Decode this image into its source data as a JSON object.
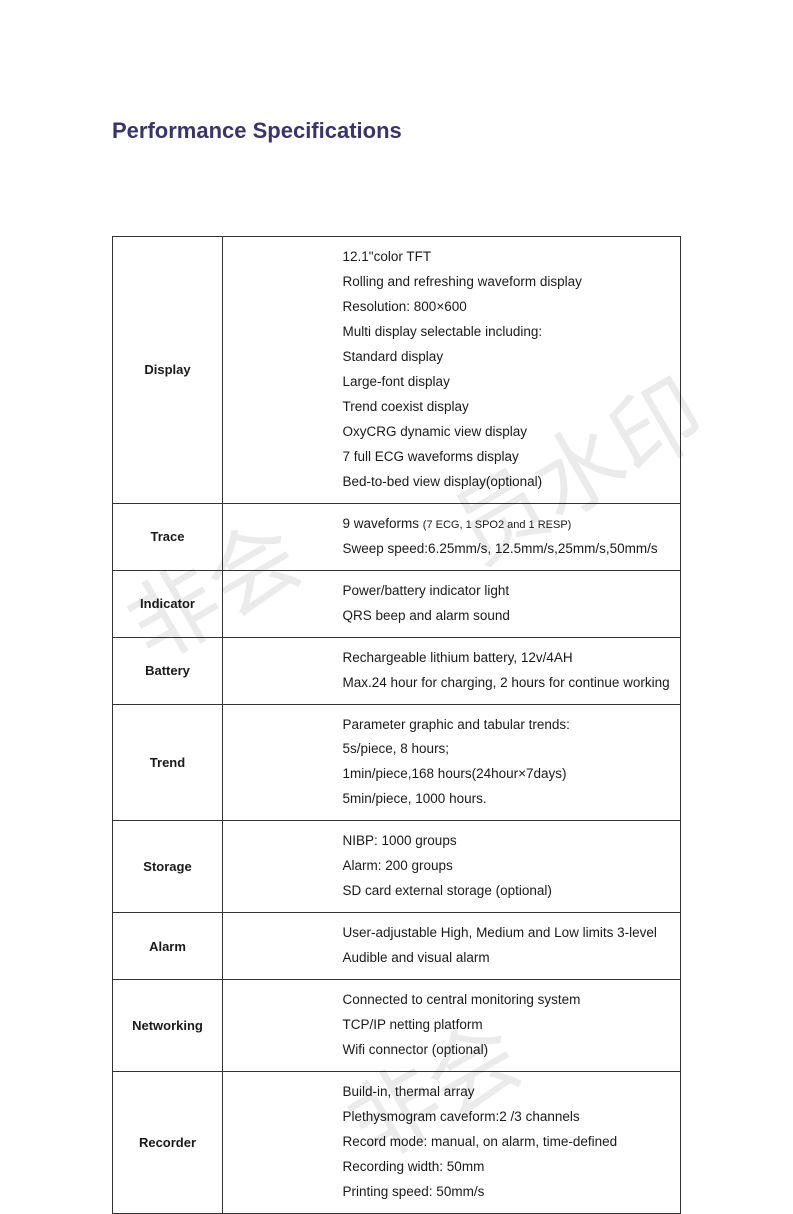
{
  "document": {
    "title": "Performance Specifications",
    "title_color": "#3a3468",
    "title_fontsize": 22,
    "background_color": "#ffffff",
    "text_color": "#1a1a1a",
    "border_color": "#333333",
    "watermark_text_1": "非会",
    "watermark_text_2": "员水印",
    "watermark_text_3": "非会",
    "watermark_color": "rgba(0,0,0,0.08)"
  },
  "table": {
    "label_col_width": 110,
    "gap_col_width": 120,
    "font_size": 13.5,
    "label_font_weight": "bold",
    "rows": [
      {
        "label": "Display",
        "lines": [
          "12.1\"color TFT",
          "Rolling and refreshing waveform display",
          "Resolution: 800×600",
          "Multi display selectable including:",
          "Standard display",
          "Large-font display",
          "Trend coexist display",
          "OxyCRG dynamic view display",
          "7 full ECG waveforms display",
          "Bed-to-bed view display(optional)"
        ]
      },
      {
        "label": "Trace",
        "lines": [
          "9 waveforms (7 ECG, 1 SPO2 and 1 RESP)",
          "Sweep speed:6.25mm/s, 12.5mm/s,25mm/s,50mm/s"
        ],
        "line_small_parts": {
          "0": "(7 ECG, 1 SPO2 and 1 RESP)"
        }
      },
      {
        "label": "Indicator",
        "lines": [
          "Power/battery indicator light",
          "QRS beep and alarm sound"
        ]
      },
      {
        "label": "Battery",
        "lines": [
          "Rechargeable lithium battery, 12v/4AH",
          "Max.24 hour for charging, 2 hours for continue working"
        ]
      },
      {
        "label": "Trend",
        "lines": [
          "Parameter graphic and tabular trends:",
          "5s/piece, 8 hours;",
          "1min/piece,168 hours(24hour×7days)",
          "5min/piece, 1000 hours."
        ]
      },
      {
        "label": "Storage",
        "lines": [
          "NIBP: 1000 groups",
          "Alarm: 200 groups",
          "SD card external storage (optional)"
        ]
      },
      {
        "label": "Alarm",
        "lines": [
          "User-adjustable High, Medium and Low limits 3-level",
          "Audible and visual alarm"
        ]
      },
      {
        "label": "Networking",
        "lines": [
          "Connected to central monitoring system",
          "TCP/IP netting platform",
          "Wifi connector (optional)"
        ]
      },
      {
        "label": "Recorder",
        "lines": [
          "Build-in, thermal array",
          "Plethysmogram caveform:2 /3 channels",
          "Record mode: manual, on alarm, time-defined",
          "Recording width: 50mm",
          "Printing speed: 50mm/s"
        ]
      }
    ]
  }
}
